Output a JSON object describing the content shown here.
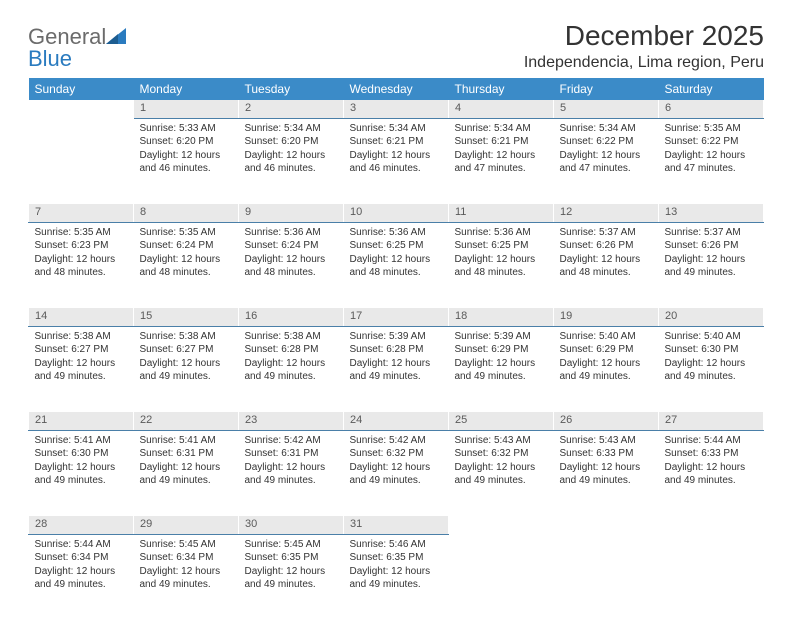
{
  "brand": {
    "general": "General",
    "blue": "Blue"
  },
  "title": "December 2025",
  "location": "Independencia, Lima region, Peru",
  "colors": {
    "header_bg": "#3b8bc8",
    "daynum_bg": "#e9e9e9",
    "daynum_border": "#4a7fa8",
    "logo_gray": "#6b6b6b",
    "logo_blue": "#2a7bbf",
    "text": "#333333",
    "background": "#ffffff"
  },
  "dow": [
    "Sunday",
    "Monday",
    "Tuesday",
    "Wednesday",
    "Thursday",
    "Friday",
    "Saturday"
  ],
  "weeks": [
    {
      "nums": [
        "",
        "1",
        "2",
        "3",
        "4",
        "5",
        "6"
      ],
      "cells": [
        "",
        "Sunrise: 5:33 AM\nSunset: 6:20 PM\nDaylight: 12 hours and 46 minutes.",
        "Sunrise: 5:34 AM\nSunset: 6:20 PM\nDaylight: 12 hours and 46 minutes.",
        "Sunrise: 5:34 AM\nSunset: 6:21 PM\nDaylight: 12 hours and 46 minutes.",
        "Sunrise: 5:34 AM\nSunset: 6:21 PM\nDaylight: 12 hours and 47 minutes.",
        "Sunrise: 5:34 AM\nSunset: 6:22 PM\nDaylight: 12 hours and 47 minutes.",
        "Sunrise: 5:35 AM\nSunset: 6:22 PM\nDaylight: 12 hours and 47 minutes."
      ]
    },
    {
      "nums": [
        "7",
        "8",
        "9",
        "10",
        "11",
        "12",
        "13"
      ],
      "cells": [
        "Sunrise: 5:35 AM\nSunset: 6:23 PM\nDaylight: 12 hours and 48 minutes.",
        "Sunrise: 5:35 AM\nSunset: 6:24 PM\nDaylight: 12 hours and 48 minutes.",
        "Sunrise: 5:36 AM\nSunset: 6:24 PM\nDaylight: 12 hours and 48 minutes.",
        "Sunrise: 5:36 AM\nSunset: 6:25 PM\nDaylight: 12 hours and 48 minutes.",
        "Sunrise: 5:36 AM\nSunset: 6:25 PM\nDaylight: 12 hours and 48 minutes.",
        "Sunrise: 5:37 AM\nSunset: 6:26 PM\nDaylight: 12 hours and 48 minutes.",
        "Sunrise: 5:37 AM\nSunset: 6:26 PM\nDaylight: 12 hours and 49 minutes."
      ]
    },
    {
      "nums": [
        "14",
        "15",
        "16",
        "17",
        "18",
        "19",
        "20"
      ],
      "cells": [
        "Sunrise: 5:38 AM\nSunset: 6:27 PM\nDaylight: 12 hours and 49 minutes.",
        "Sunrise: 5:38 AM\nSunset: 6:27 PM\nDaylight: 12 hours and 49 minutes.",
        "Sunrise: 5:38 AM\nSunset: 6:28 PM\nDaylight: 12 hours and 49 minutes.",
        "Sunrise: 5:39 AM\nSunset: 6:28 PM\nDaylight: 12 hours and 49 minutes.",
        "Sunrise: 5:39 AM\nSunset: 6:29 PM\nDaylight: 12 hours and 49 minutes.",
        "Sunrise: 5:40 AM\nSunset: 6:29 PM\nDaylight: 12 hours and 49 minutes.",
        "Sunrise: 5:40 AM\nSunset: 6:30 PM\nDaylight: 12 hours and 49 minutes."
      ]
    },
    {
      "nums": [
        "21",
        "22",
        "23",
        "24",
        "25",
        "26",
        "27"
      ],
      "cells": [
        "Sunrise: 5:41 AM\nSunset: 6:30 PM\nDaylight: 12 hours and 49 minutes.",
        "Sunrise: 5:41 AM\nSunset: 6:31 PM\nDaylight: 12 hours and 49 minutes.",
        "Sunrise: 5:42 AM\nSunset: 6:31 PM\nDaylight: 12 hours and 49 minutes.",
        "Sunrise: 5:42 AM\nSunset: 6:32 PM\nDaylight: 12 hours and 49 minutes.",
        "Sunrise: 5:43 AM\nSunset: 6:32 PM\nDaylight: 12 hours and 49 minutes.",
        "Sunrise: 5:43 AM\nSunset: 6:33 PM\nDaylight: 12 hours and 49 minutes.",
        "Sunrise: 5:44 AM\nSunset: 6:33 PM\nDaylight: 12 hours and 49 minutes."
      ]
    },
    {
      "nums": [
        "28",
        "29",
        "30",
        "31",
        "",
        "",
        ""
      ],
      "cells": [
        "Sunrise: 5:44 AM\nSunset: 6:34 PM\nDaylight: 12 hours and 49 minutes.",
        "Sunrise: 5:45 AM\nSunset: 6:34 PM\nDaylight: 12 hours and 49 minutes.",
        "Sunrise: 5:45 AM\nSunset: 6:35 PM\nDaylight: 12 hours and 49 minutes.",
        "Sunrise: 5:46 AM\nSunset: 6:35 PM\nDaylight: 12 hours and 49 minutes.",
        "",
        "",
        ""
      ]
    }
  ]
}
